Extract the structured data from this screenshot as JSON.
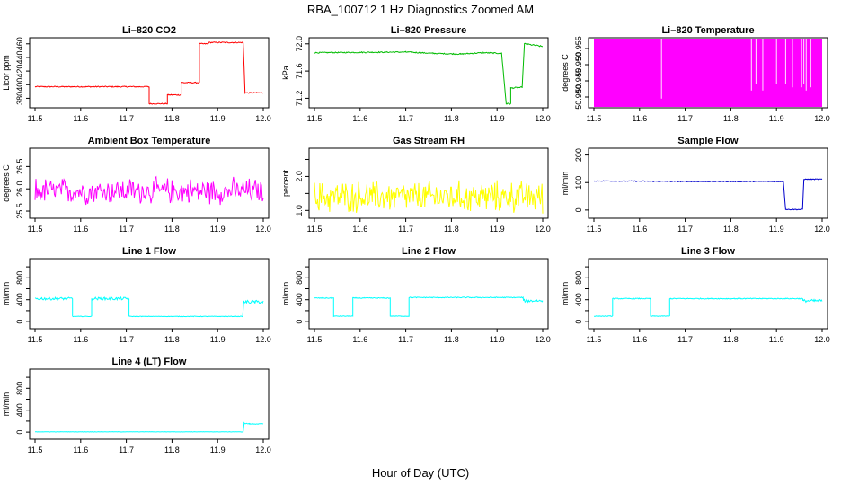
{
  "title": "RBA_100712 1 Hz Diagnostics Zoomed AM",
  "xlabel": "Hour of Day (UTC)",
  "chart_data": [
    {
      "type": "line",
      "title": "Li–820 CO2",
      "ylabel": "Licor ppm",
      "color": "#ff0000",
      "xlim": [
        11.5,
        12.0
      ],
      "ylim": [
        370,
        465
      ],
      "yticks": [
        380,
        400,
        420,
        440,
        460
      ],
      "xticks": [
        "11.5",
        "11.6",
        "11.7",
        "11.8",
        "11.9",
        "12.0"
      ],
      "segments": [
        [
          11.5,
          397,
          0.8
        ],
        [
          11.75,
          397,
          0.8
        ],
        [
          11.75,
          372,
          0.8
        ],
        [
          11.79,
          372,
          0.8
        ],
        [
          11.79,
          385,
          0.8
        ],
        [
          11.82,
          385,
          0.8
        ],
        [
          11.82,
          403,
          0.8
        ],
        [
          11.86,
          403,
          0.8
        ],
        [
          11.86,
          460,
          0.8
        ],
        [
          11.88,
          460,
          0.8
        ],
        [
          11.88,
          462,
          0.8
        ],
        [
          11.956,
          462,
          0.8
        ],
        [
          11.96,
          388,
          0.8
        ],
        [
          12.0,
          388,
          0.8
        ]
      ]
    },
    {
      "type": "line",
      "title": "Li–820 Pressure",
      "ylabel": "kPa",
      "color": "#00bb00",
      "xlim": [
        11.5,
        12.0
      ],
      "ylim": [
        71.1,
        72.05
      ],
      "yticks": [
        71.2,
        71.6,
        72.0
      ],
      "yticklabels": [
        "71.2",
        "71.6",
        "72.0"
      ],
      "xticks": [
        "11.5",
        "11.6",
        "11.7",
        "11.8",
        "11.9",
        "12.0"
      ],
      "segments": [
        [
          11.5,
          71.87,
          0.008
        ],
        [
          11.7,
          71.88,
          0.008
        ],
        [
          11.76,
          71.86,
          0.008
        ],
        [
          11.82,
          71.85,
          0.008
        ],
        [
          11.87,
          71.87,
          0.008
        ],
        [
          11.91,
          71.86,
          0.008
        ],
        [
          11.92,
          71.12,
          0.01
        ],
        [
          11.93,
          71.12,
          0.01
        ],
        [
          11.93,
          71.35,
          0.01
        ],
        [
          11.955,
          71.36,
          0.01
        ],
        [
          11.96,
          72.0,
          0.01
        ],
        [
          12.0,
          71.96,
          0.01
        ]
      ]
    },
    {
      "type": "area",
      "title": "Li–820 Temperature",
      "ylabel": "degrees C",
      "color": "#ff00ff",
      "xlim": [
        11.5,
        12.0
      ],
      "ylim": [
        50.9375,
        50.9575
      ],
      "yticks": [
        50.94,
        50.945,
        50.95,
        50.955
      ],
      "yticklabels": [
        "50.940",
        "50.945",
        "50.950",
        "50.955"
      ],
      "xticks": [
        "11.5",
        "11.6",
        "11.7",
        "11.8",
        "11.9",
        "12.0"
      ],
      "fill": [
        11.5,
        12.0
      ],
      "gaps": [
        [
          11.648,
          50.9395
        ],
        [
          11.845,
          50.942
        ],
        [
          11.855,
          50.944
        ],
        [
          11.87,
          50.942
        ],
        [
          11.9,
          50.944
        ],
        [
          11.92,
          50.944
        ],
        [
          11.935,
          50.943
        ],
        [
          11.955,
          50.943
        ],
        [
          11.96,
          50.944
        ],
        [
          11.965,
          50.942
        ],
        [
          11.975,
          50.943
        ]
      ]
    },
    {
      "type": "line",
      "title": "Ambient Box Temperature",
      "ylabel": "degrees C",
      "color": "#ff00ff",
      "xlim": [
        11.5,
        12.0
      ],
      "ylim": [
        25.4,
        26.85
      ],
      "yticks": [
        25.5,
        26.0,
        26.5
      ],
      "yticklabels": [
        "25.5",
        "26.0",
        "26.5"
      ],
      "xticks": [
        "11.5",
        "11.6",
        "11.7",
        "11.8",
        "11.9",
        "12.0"
      ],
      "noise": {
        "center": 25.95,
        "amp": 0.35,
        "n": 260
      }
    },
    {
      "type": "line",
      "title": "Gas Stream RH",
      "ylabel": "percent",
      "color": "#ffff00",
      "xlim": [
        11.5,
        12.0
      ],
      "ylim": [
        0.85,
        2.75
      ],
      "yticks": [
        1.0,
        1.5,
        2.0,
        2.5
      ],
      "yticklabels": [
        "1.0",
        "",
        "2.0",
        ""
      ],
      "xticks": [
        "11.5",
        "11.6",
        "11.7",
        "11.8",
        "11.9",
        "12.0"
      ],
      "noise": {
        "center": 1.4,
        "amp": 0.55,
        "n": 300
      }
    },
    {
      "type": "line",
      "title": "Sample Flow",
      "ylabel": "ml/min",
      "color": "#0000cc",
      "xlim": [
        11.5,
        12.0
      ],
      "ylim": [
        -20,
        215
      ],
      "yticks": [
        0,
        100,
        200
      ],
      "xticks": [
        "11.5",
        "11.6",
        "11.7",
        "11.8",
        "11.9",
        "12.0"
      ],
      "segments": [
        [
          11.5,
          106,
          1.5
        ],
        [
          11.7,
          104,
          1.5
        ],
        [
          11.9,
          104,
          1.5
        ],
        [
          11.915,
          104,
          1.5
        ],
        [
          11.92,
          2,
          1.5
        ],
        [
          11.957,
          2,
          1.5
        ],
        [
          11.96,
          112,
          1.5
        ],
        [
          12.0,
          112,
          1.5
        ]
      ]
    },
    {
      "type": "line",
      "title": "Line 1 Flow",
      "ylabel": "ml/min",
      "color": "#00ffff",
      "xlim": [
        11.5,
        12.0
      ],
      "ylim": [
        -80,
        1100
      ],
      "yticks": [
        0,
        200,
        400,
        600,
        800,
        1000
      ],
      "yticklabels": [
        "0",
        "",
        "400",
        "",
        "800",
        ""
      ],
      "xticks": [
        "11.5",
        "11.6",
        "11.7",
        "11.8",
        "11.9",
        "12.0"
      ],
      "segments": [
        [
          11.5,
          420,
          25
        ],
        [
          11.582,
          420,
          25
        ],
        [
          11.582,
          95,
          5
        ],
        [
          11.624,
          95,
          5
        ],
        [
          11.624,
          420,
          25
        ],
        [
          11.706,
          420,
          25
        ],
        [
          11.706,
          95,
          5
        ],
        [
          11.955,
          95,
          5
        ],
        [
          11.957,
          360,
          30
        ],
        [
          12.0,
          360,
          30
        ]
      ]
    },
    {
      "type": "line",
      "title": "Line 2 Flow",
      "ylabel": "ml/min",
      "color": "#00ffff",
      "xlim": [
        11.5,
        12.0
      ],
      "ylim": [
        -80,
        1100
      ],
      "yticks": [
        0,
        200,
        400,
        600,
        800,
        1000
      ],
      "yticklabels": [
        "0",
        "",
        "400",
        "",
        "800",
        ""
      ],
      "xticks": [
        "11.5",
        "11.6",
        "11.7",
        "11.8",
        "11.9",
        "12.0"
      ],
      "segments": [
        [
          11.5,
          430,
          8
        ],
        [
          11.542,
          430,
          8
        ],
        [
          11.542,
          100,
          5
        ],
        [
          11.584,
          100,
          5
        ],
        [
          11.584,
          430,
          8
        ],
        [
          11.666,
          430,
          8
        ],
        [
          11.666,
          100,
          5
        ],
        [
          11.707,
          100,
          5
        ],
        [
          11.707,
          440,
          8
        ],
        [
          11.957,
          440,
          8
        ],
        [
          11.958,
          380,
          25
        ],
        [
          12.0,
          380,
          25
        ]
      ]
    },
    {
      "type": "line",
      "title": "Line 3 Flow",
      "ylabel": "ml/min",
      "color": "#00ffff",
      "xlim": [
        11.5,
        12.0
      ],
      "ylim": [
        -80,
        1100
      ],
      "yticks": [
        0,
        200,
        400,
        600,
        800,
        1000
      ],
      "yticklabels": [
        "0",
        "",
        "400",
        "",
        "800",
        ""
      ],
      "xticks": [
        "11.5",
        "11.6",
        "11.7",
        "11.8",
        "11.9",
        "12.0"
      ],
      "segments": [
        [
          11.5,
          100,
          5
        ],
        [
          11.541,
          100,
          5
        ],
        [
          11.541,
          420,
          8
        ],
        [
          11.624,
          420,
          8
        ],
        [
          11.624,
          100,
          5
        ],
        [
          11.666,
          100,
          5
        ],
        [
          11.666,
          420,
          8
        ],
        [
          11.957,
          420,
          8
        ],
        [
          11.958,
          380,
          25
        ],
        [
          12.0,
          380,
          25
        ]
      ]
    },
    {
      "type": "line",
      "title": "Line 4 (LT) Flow",
      "ylabel": "ml/min",
      "color": "#00ffff",
      "xlim": [
        11.5,
        12.0
      ],
      "ylim": [
        -80,
        1100
      ],
      "yticks": [
        0,
        200,
        400,
        600,
        800,
        1000
      ],
      "yticklabels": [
        "0",
        "",
        "400",
        "",
        "800",
        ""
      ],
      "xticks": [
        "11.5",
        "11.6",
        "11.7",
        "11.8",
        "11.9",
        "12.0"
      ],
      "segments": [
        [
          11.5,
          5,
          3
        ],
        [
          11.956,
          5,
          3
        ],
        [
          11.958,
          160,
          10
        ],
        [
          11.97,
          150,
          6
        ],
        [
          12.0,
          150,
          6
        ]
      ]
    }
  ]
}
